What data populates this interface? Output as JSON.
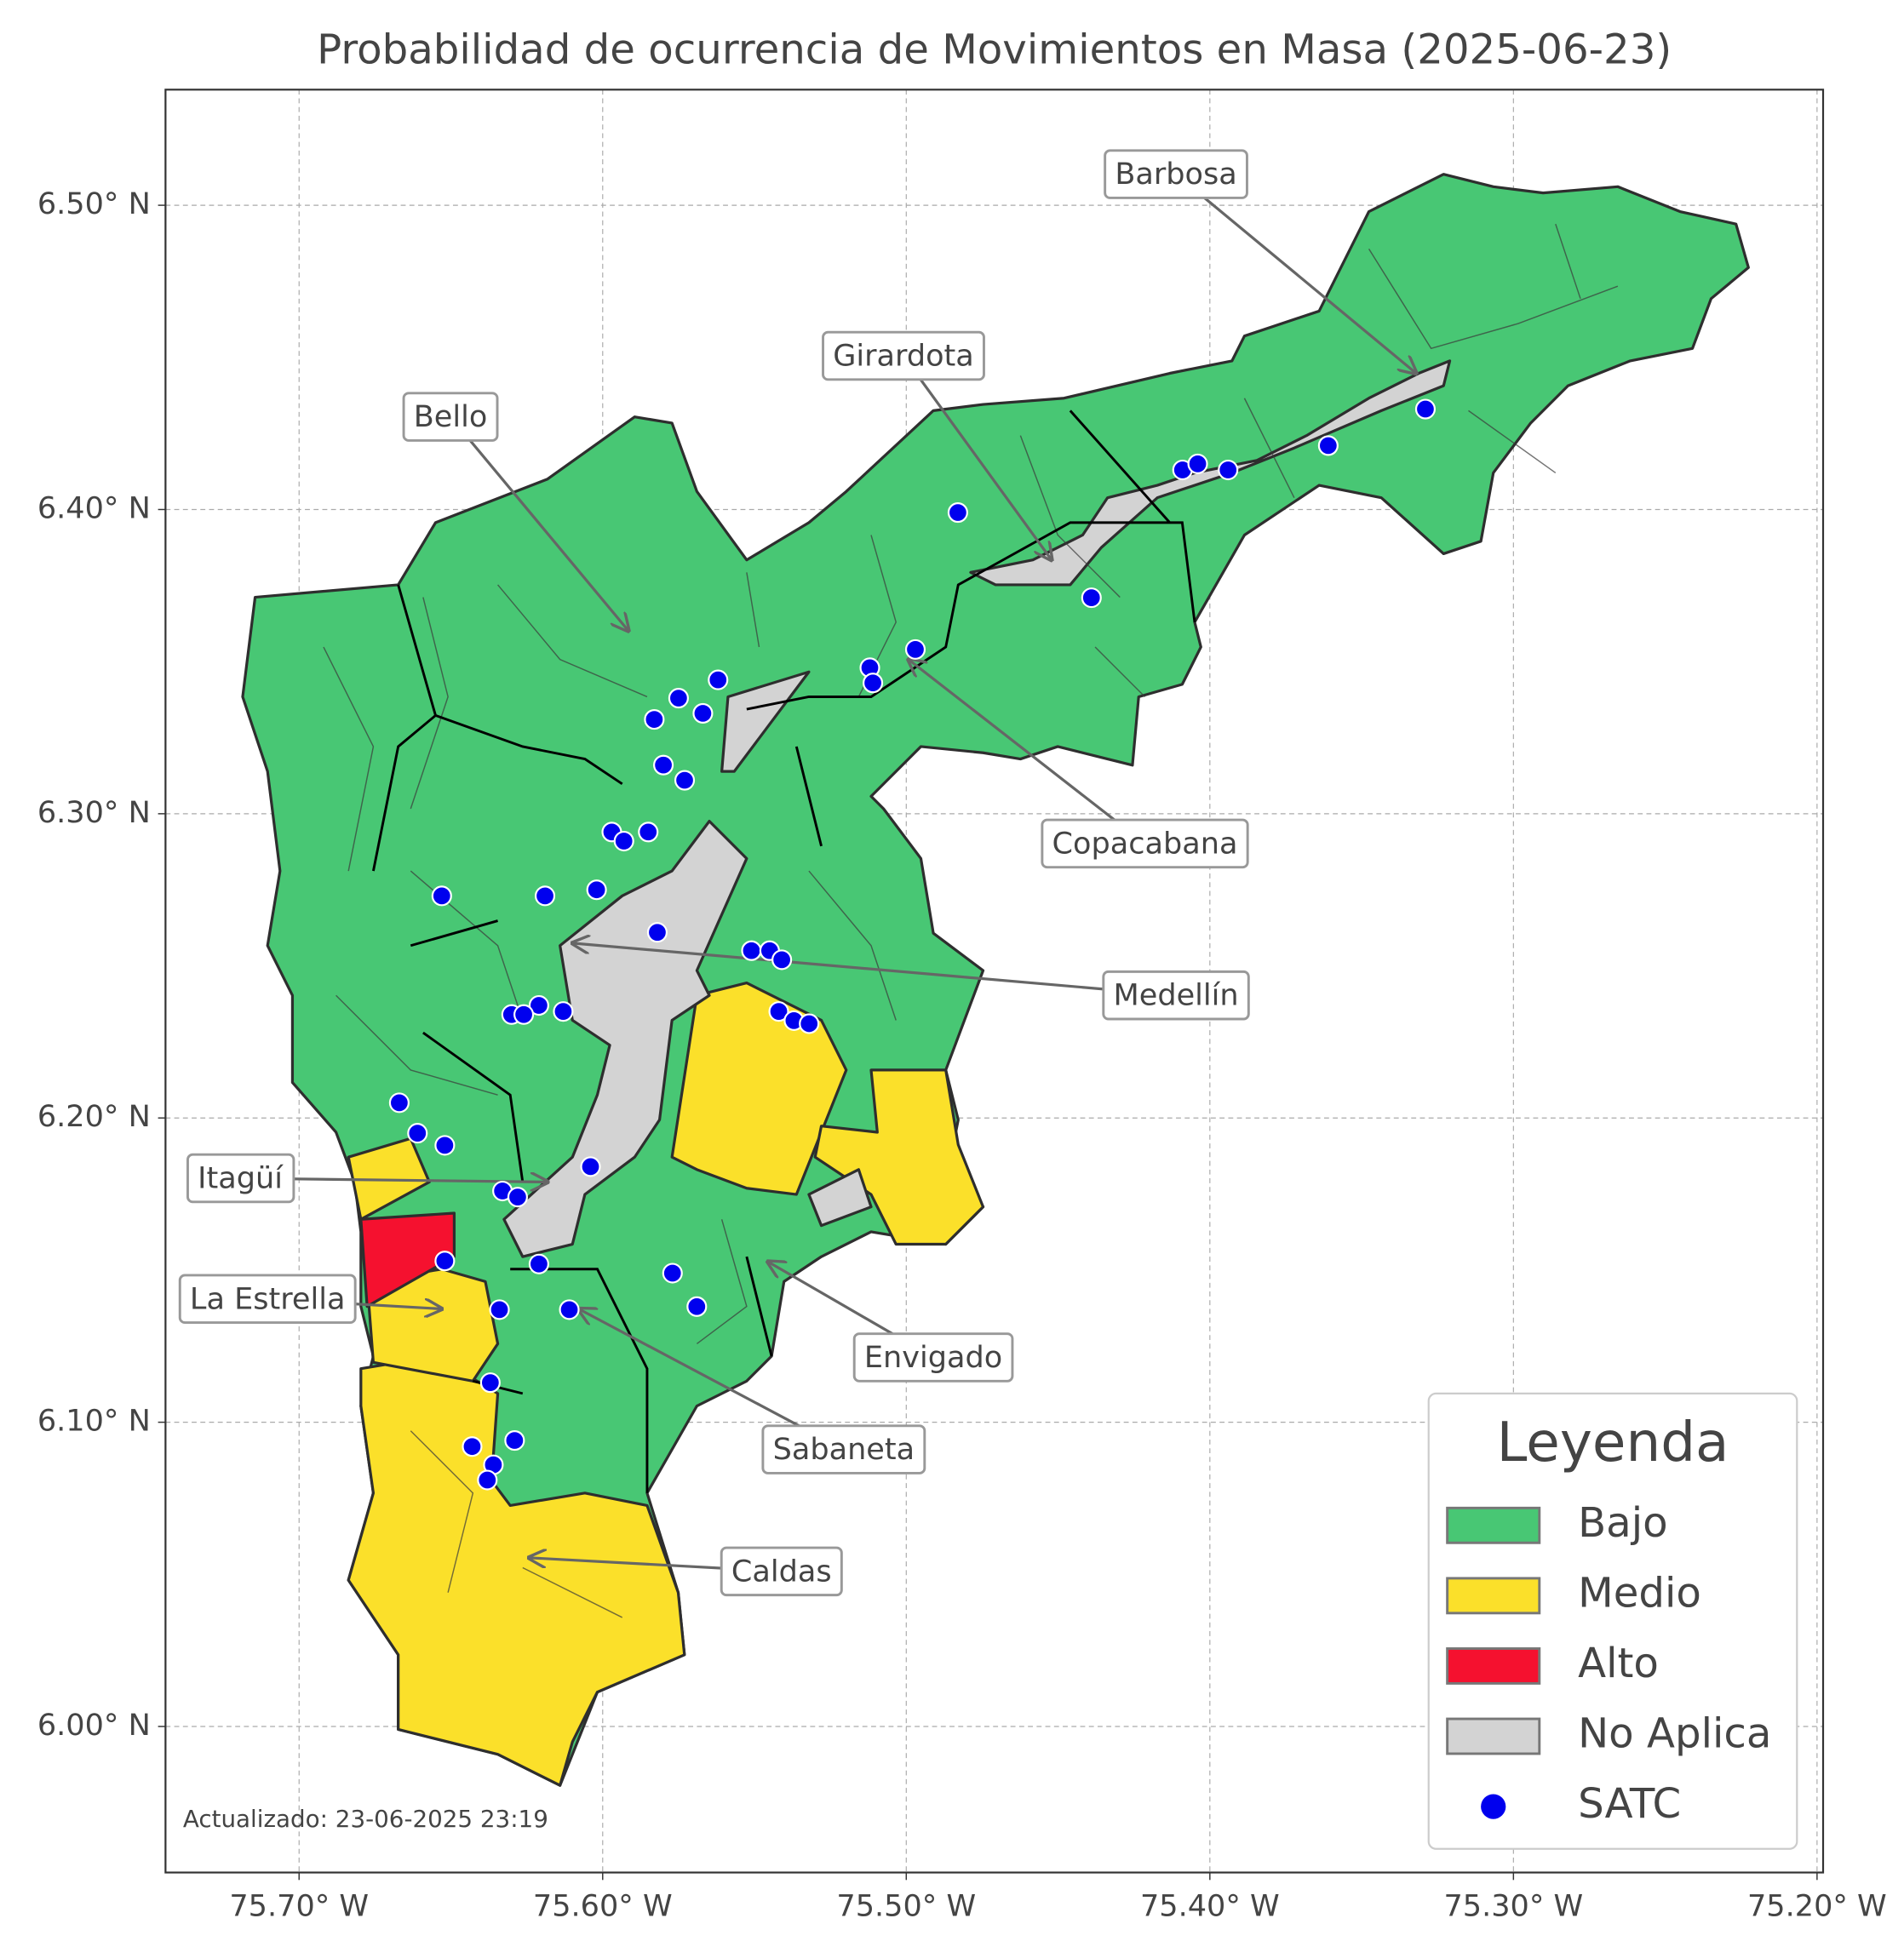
{
  "chart_data": {
    "type": "map",
    "title": "Probabilidad de ocurrencia de Movimientos en Masa (2025-06-23)",
    "xlim": [
      -75.744,
      -75.198
    ],
    "ylim": [
      5.952,
      6.538
    ],
    "xticks": [
      {
        "value": -75.7,
        "label": "75.70° W"
      },
      {
        "value": -75.6,
        "label": "75.60° W"
      },
      {
        "value": -75.5,
        "label": "75.50° W"
      },
      {
        "value": -75.4,
        "label": "75.40° W"
      },
      {
        "value": -75.3,
        "label": "75.30° W"
      },
      {
        "value": -75.2,
        "label": "75.20° W"
      }
    ],
    "yticks": [
      {
        "value": 6.0,
        "label": "6.00° N"
      },
      {
        "value": 6.1,
        "label": "6.10° N"
      },
      {
        "value": 6.2,
        "label": "6.20° N"
      },
      {
        "value": 6.3,
        "label": "6.30° N"
      },
      {
        "value": 6.4,
        "label": "6.40° N"
      },
      {
        "value": 6.5,
        "label": "6.50° N"
      }
    ],
    "grid": true,
    "annotations": [
      "Barbosa",
      "Girardota",
      "Bello",
      "Copacabana",
      "Medellín",
      "Itagüí",
      "La Estrella",
      "Envigado",
      "Sabaneta",
      "Caldas"
    ],
    "legend_title": "Leyenda",
    "categories": [
      {
        "name": "Bajo",
        "color": "#48c774"
      },
      {
        "name": "Medio",
        "color": "#fbe02a"
      },
      {
        "name": "Alto",
        "color": "#f5112f"
      },
      {
        "name": "No Aplica",
        "color": "#d3d3d3"
      }
    ],
    "stations": {
      "name": "SATC",
      "color": "#0000ee",
      "lon": [
        -75.329,
        -75.361,
        -75.409,
        -75.404,
        -75.394,
        -75.483,
        -75.439,
        -75.497,
        -75.512,
        -75.511,
        -75.562,
        -75.575,
        -75.583,
        -75.567,
        -75.58,
        -75.573,
        -75.597,
        -75.593,
        -75.585,
        -75.653,
        -75.619,
        -75.602,
        -75.582,
        -75.551,
        -75.545,
        -75.541,
        -75.542,
        -75.537,
        -75.532,
        -75.621,
        -75.63,
        -75.626,
        -75.613,
        -75.667,
        -75.661,
        -75.652,
        -75.604,
        -75.633,
        -75.628,
        -75.621,
        -75.652,
        -75.577,
        -75.569,
        -75.634,
        -75.611,
        -75.637,
        -75.643,
        -75.629,
        -75.636,
        -75.638
      ],
      "lat": [
        6.433,
        6.421,
        6.413,
        6.415,
        6.413,
        6.399,
        6.371,
        6.354,
        6.348,
        6.343,
        6.344,
        6.338,
        6.331,
        6.333,
        6.316,
        6.311,
        6.294,
        6.291,
        6.294,
        6.273,
        6.273,
        6.275,
        6.261,
        6.255,
        6.255,
        6.252,
        6.235,
        6.232,
        6.231,
        6.237,
        6.234,
        6.234,
        6.235,
        6.205,
        6.195,
        6.191,
        6.184,
        6.176,
        6.174,
        6.152,
        6.153,
        6.149,
        6.138,
        6.137,
        6.137,
        6.113,
        6.092,
        6.094,
        6.086,
        6.081
      ]
    },
    "footnote": "Actualizado: 23-06-2025 23:19"
  }
}
